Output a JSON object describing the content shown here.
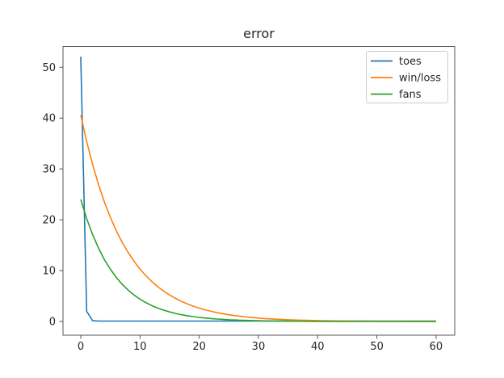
{
  "figure": {
    "background": "#ffffff"
  },
  "chart_data": {
    "type": "line",
    "title": "error",
    "xlabel": "",
    "ylabel": "",
    "grid": false,
    "xlim": [
      -3.0,
      63.15
    ],
    "ylim": [
      -2.7,
      54.1
    ],
    "xticks": [
      0,
      10,
      20,
      30,
      40,
      50,
      60
    ],
    "yticks": [
      0,
      10,
      20,
      30,
      40,
      50
    ],
    "legend": {
      "position": "upper right",
      "entries": [
        "toes",
        "win/loss",
        "fans"
      ]
    },
    "x": [
      0,
      1,
      2,
      3,
      4,
      5,
      6,
      7,
      8,
      9,
      10,
      11,
      12,
      13,
      14,
      15,
      16,
      17,
      18,
      19,
      20,
      21,
      22,
      23,
      24,
      25,
      26,
      27,
      28,
      29,
      30,
      31,
      32,
      33,
      34,
      35,
      36,
      37,
      38,
      39,
      40,
      41,
      42,
      43,
      44,
      45,
      46,
      47,
      48,
      49,
      50,
      51,
      52,
      53,
      54,
      55,
      56,
      57,
      58,
      59,
      60
    ],
    "series": [
      {
        "name": "toes",
        "color": "#1f77b4",
        "values": [
          52.1,
          2.0,
          0.15,
          0.08,
          0.08,
          0.08,
          0.08,
          0.08,
          0.08,
          0.08,
          0.08,
          0.08,
          0.08,
          0.08,
          0.08,
          0.08,
          0.08,
          0.08,
          0.08,
          0.08,
          0.08,
          0.08,
          0.08,
          0.08,
          0.08,
          0.08,
          0.08,
          0.08,
          0.08,
          0.08,
          0.08,
          0.08,
          0.08,
          0.08,
          0.08,
          0.08,
          0.08,
          0.08,
          0.08,
          0.08,
          0.08,
          0.08,
          0.08,
          0.08,
          0.08,
          0.08,
          0.08,
          0.08,
          0.08,
          0.08,
          0.08,
          0.08,
          0.08,
          0.08,
          0.08,
          0.08,
          0.08,
          0.08,
          0.08,
          0.08,
          0.08
        ]
      },
      {
        "name": "win/loss",
        "color": "#ff7f0e",
        "values": [
          40.6,
          35.4,
          30.87,
          26.92,
          23.47,
          20.47,
          17.85,
          15.56,
          13.57,
          11.83,
          10.32,
          9.0,
          7.85,
          6.84,
          5.97,
          5.2,
          4.54,
          3.96,
          3.45,
          3.01,
          2.62,
          2.29,
          2.0,
          1.74,
          1.52,
          1.32,
          1.15,
          1.01,
          0.88,
          0.77,
          0.67,
          0.58,
          0.51,
          0.44,
          0.39,
          0.34,
          0.29,
          0.26,
          0.22,
          0.2,
          0.17,
          0.15,
          0.13,
          0.11,
          0.1,
          0.09,
          0.08,
          0.07,
          0.06,
          0.05,
          0.04,
          0.04,
          0.03,
          0.03,
          0.03,
          0.02,
          0.02,
          0.02,
          0.02,
          0.01,
          0.01
        ]
      },
      {
        "name": "fans",
        "color": "#2ca02c",
        "values": [
          24.0,
          20.25,
          17.08,
          14.41,
          12.16,
          10.26,
          8.66,
          7.3,
          6.16,
          5.2,
          4.39,
          3.7,
          3.12,
          2.63,
          2.22,
          1.88,
          1.58,
          1.33,
          1.13,
          0.95,
          0.8,
          0.68,
          0.57,
          0.48,
          0.41,
          0.34,
          0.29,
          0.24,
          0.21,
          0.17,
          0.15,
          0.12,
          0.1,
          0.09,
          0.07,
          0.06,
          0.05,
          0.05,
          0.04,
          0.03,
          0.03,
          0.02,
          0.02,
          0.02,
          0.01,
          0.01,
          0.01,
          0.01,
          0.01,
          0.01,
          0.0,
          0.0,
          0.0,
          0.0,
          0.0,
          0.0,
          0.0,
          0.0,
          0.0,
          0.0,
          0.0
        ]
      }
    ]
  }
}
